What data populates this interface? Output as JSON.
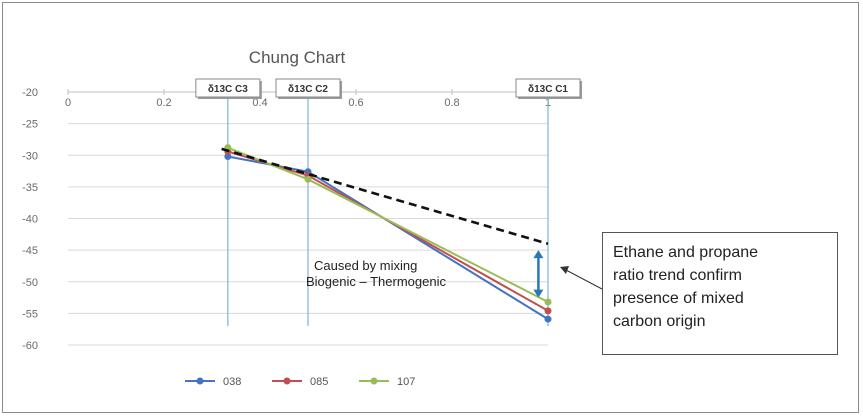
{
  "chart_data": {
    "type": "line",
    "title": "Chung Chart",
    "xlim": [
      0,
      1
    ],
    "ylim": [
      -60,
      -20
    ],
    "x_ticks": [
      "0",
      "0.2",
      "0.4",
      "0.6",
      "0.8",
      "1"
    ],
    "y_ticks": [
      "-20",
      "-25",
      "-30",
      "-35",
      "-40",
      "-45",
      "-50",
      "-55",
      "-60"
    ],
    "x_axis_position": "top",
    "grid": "horizontal",
    "legend": "bottom",
    "series": [
      {
        "name": "038",
        "color": "#4472c4",
        "points": [
          [
            0.333,
            -30.2
          ],
          [
            0.5,
            -32.6
          ],
          [
            1.0,
            -55.9
          ]
        ]
      },
      {
        "name": "085",
        "color": "#c0504d",
        "points": [
          [
            0.333,
            -29.4
          ],
          [
            0.5,
            -33.2
          ],
          [
            1.0,
            -54.6
          ]
        ]
      },
      {
        "name": "107",
        "color": "#9bbb59",
        "points": [
          [
            0.333,
            -28.8
          ],
          [
            0.5,
            -33.8
          ],
          [
            1.0,
            -53.2
          ]
        ]
      }
    ],
    "markers": [
      {
        "label": "δ13C C3",
        "x": 0.333
      },
      {
        "label": "δ13C C2",
        "x": 0.5
      },
      {
        "label": "δ13C C1",
        "x": 1.0
      }
    ],
    "trend_line": {
      "points": [
        [
          0.32,
          -29.0
        ],
        [
          1.0,
          -44.0
        ]
      ],
      "color": "#111111"
    },
    "mixing_arrow": {
      "x": 0.98,
      "y_from": -45,
      "y_to": -52.5,
      "color": "#2e75b6"
    },
    "annotation": {
      "line1": "Caused by mixing",
      "line2": "Biogenic – Thermogenic"
    },
    "callout": {
      "lines": [
        "Ethane and propane",
        "ratio trend confirm",
        "presence of mixed",
        "carbon origin"
      ]
    }
  }
}
